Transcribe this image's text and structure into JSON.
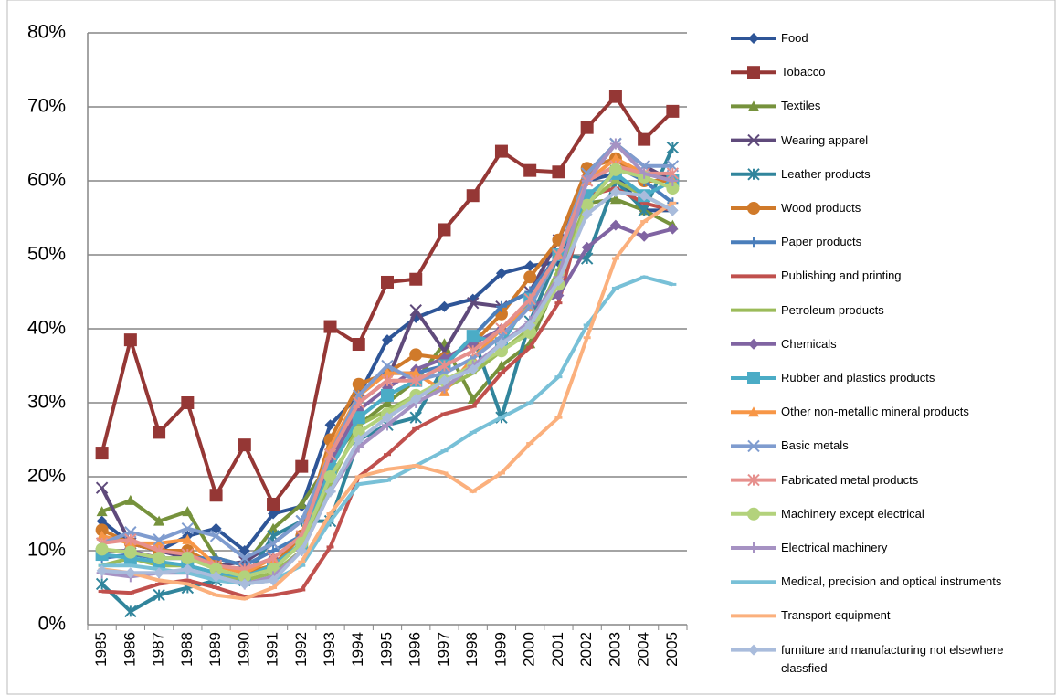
{
  "chart_data": {
    "type": "line",
    "categories": [
      "1985",
      "1986",
      "1987",
      "1988",
      "1989",
      "1990",
      "1991",
      "1992",
      "1993",
      "1994",
      "1995",
      "1996",
      "1997",
      "1998",
      "1999",
      "2000",
      "2001",
      "2002",
      "2003",
      "2004",
      "2005"
    ],
    "ylim": [
      0,
      80
    ],
    "yticks": [
      {
        "value": 0,
        "label": "0%"
      },
      {
        "value": 10,
        "label": "10%"
      },
      {
        "value": 20,
        "label": "20%"
      },
      {
        "value": 30,
        "label": "30%"
      },
      {
        "value": 40,
        "label": "40%"
      },
      {
        "value": 50,
        "label": "50%"
      },
      {
        "value": 60,
        "label": "60%"
      },
      {
        "value": 70,
        "label": "70%"
      },
      {
        "value": 80,
        "label": "80%"
      }
    ],
    "grid": true,
    "legend": "right",
    "series": [
      {
        "name": "Food",
        "color": "#2e5597",
        "marker": "diamond",
        "values": [
          14,
          11,
          10,
          12,
          13,
          10,
          15,
          16,
          27,
          31,
          38.5,
          41.5,
          43,
          44,
          47.5,
          48.5,
          49,
          60,
          61,
          56,
          56
        ]
      },
      {
        "name": "Tobacco",
        "color": "#953735",
        "marker": "square",
        "values": [
          23.2,
          38.5,
          26,
          30,
          17.5,
          24.3,
          16.3,
          21.4,
          40.3,
          37.9,
          46.3,
          46.7,
          53.4,
          58,
          64,
          61.4,
          61.2,
          67.2,
          71.4,
          65.6,
          69.4
        ]
      },
      {
        "name": "Textiles",
        "color": "#76923c",
        "marker": "triangle",
        "values": [
          15.3,
          16.8,
          14,
          15.3,
          9,
          8,
          13,
          16.3,
          22,
          27,
          30,
          33,
          38,
          30.5,
          35,
          38,
          47,
          57,
          57.5,
          56,
          54
        ]
      },
      {
        "name": "Wearing apparel",
        "color": "#5f4a7b",
        "marker": "x",
        "values": [
          18.5,
          11,
          10,
          9,
          8,
          8.5,
          11,
          14,
          22,
          30,
          33,
          42.5,
          37,
          43.5,
          43,
          45,
          52,
          61,
          65,
          62,
          60
        ]
      },
      {
        "name": "Leather products",
        "color": "#31859c",
        "marker": "star",
        "values": [
          5.5,
          1.8,
          4,
          5,
          6,
          6,
          12,
          14,
          14,
          25,
          27,
          28,
          35,
          39,
          28,
          41,
          50,
          49.5,
          60,
          56,
          64.5
        ]
      },
      {
        "name": "Wood products",
        "color": "#d07a2a",
        "marker": "circle",
        "values": [
          12.8,
          11,
          10,
          10,
          8,
          7,
          8,
          12,
          25,
          32.5,
          34,
          36.5,
          36,
          38,
          42,
          47,
          52,
          61.7,
          63,
          60,
          60
        ]
      },
      {
        "name": "Paper products",
        "color": "#4a7ebb",
        "marker": "plus",
        "values": [
          9,
          9.5,
          9,
          9,
          9,
          8,
          10,
          12,
          22,
          31,
          34,
          34,
          35,
          39,
          43,
          45,
          50,
          60,
          62,
          60,
          57
        ]
      },
      {
        "name": "Publishing and printing",
        "color": "#c0504d",
        "marker": "dash",
        "values": [
          4.5,
          4.3,
          5.5,
          6,
          5,
          3.8,
          4,
          4.7,
          10.5,
          20,
          23,
          26.5,
          28.5,
          29.5,
          34,
          37.5,
          43.5,
          58,
          59,
          57,
          56
        ]
      },
      {
        "name": "Petroleum products",
        "color": "#9bbb59",
        "marker": "dash",
        "values": [
          8,
          9,
          8,
          8,
          7,
          6,
          7,
          10,
          19,
          27,
          29,
          31,
          32,
          34,
          37,
          40,
          48,
          57,
          60,
          58,
          56
        ]
      },
      {
        "name": "Chemicals",
        "color": "#8064a2",
        "marker": "diamond",
        "values": [
          10,
          10,
          9,
          9,
          8,
          7.5,
          9,
          12,
          22,
          29,
          32,
          34.5,
          36,
          38,
          40,
          43,
          44.5,
          51,
          54,
          52.5,
          53.5
        ]
      },
      {
        "name": "Rubber and plastics products",
        "color": "#4bacc6",
        "marker": "square",
        "values": [
          9.5,
          9,
          8.5,
          8,
          7,
          6.5,
          8,
          11,
          21,
          28,
          31,
          33,
          35,
          39,
          38,
          44,
          50,
          58,
          61,
          58,
          60
        ]
      },
      {
        "name": "Other non-metallic mineral products",
        "color": "#f79646",
        "marker": "triangle",
        "values": [
          12,
          11,
          11,
          11.5,
          8,
          7,
          9,
          12,
          24,
          31,
          34,
          34,
          31.5,
          36,
          40,
          43,
          50,
          60,
          63,
          61,
          60
        ]
      },
      {
        "name": "Basic metals",
        "color": "#7f9ccf",
        "marker": "x",
        "values": [
          11,
          12.5,
          11.5,
          13,
          12,
          9,
          11,
          14,
          23,
          31,
          35,
          33,
          34,
          36,
          39,
          43,
          50,
          61,
          65,
          62,
          62
        ]
      },
      {
        "name": "Fabricated metal products",
        "color": "#e6908d",
        "marker": "star",
        "values": [
          11,
          11.5,
          10,
          9.5,
          8,
          7.5,
          9,
          12,
          23,
          30,
          33,
          33,
          35,
          37,
          40,
          44,
          50,
          60,
          62,
          61,
          61
        ]
      },
      {
        "name": "Machinery except electrical",
        "color": "#b3d27c",
        "marker": "circle",
        "values": [
          10.2,
          9.8,
          9,
          9,
          7.5,
          6.5,
          7.5,
          11,
          20,
          26,
          28.5,
          31,
          33,
          35,
          37,
          39.5,
          46,
          56.7,
          61.5,
          60.5,
          59
        ]
      },
      {
        "name": "Electrical machinery",
        "color": "#a692c3",
        "marker": "plus",
        "values": [
          7,
          6.5,
          7,
          7,
          6.5,
          5.5,
          6.5,
          10,
          18,
          24,
          27,
          30,
          32,
          35,
          38,
          41,
          47,
          60,
          65,
          61,
          60
        ]
      },
      {
        "name": "Medical, precision and optical instruments",
        "color": "#78c0d7",
        "marker": "dash",
        "values": [
          8,
          8,
          7.5,
          7,
          6,
          5.5,
          6,
          8,
          14,
          19,
          19.5,
          21.5,
          23.5,
          26,
          28,
          30,
          33.5,
          40.5,
          45.5,
          47,
          46
        ]
      },
      {
        "name": "Transport equipment",
        "color": "#fbb07d",
        "marker": "dash",
        "values": [
          7.5,
          7,
          6,
          5.5,
          4,
          3.5,
          5,
          8.5,
          15,
          20,
          21,
          21.5,
          20.5,
          18,
          20.5,
          24.5,
          28,
          38.8,
          49.5,
          54.5,
          57
        ]
      },
      {
        "name": "furniture and manufacturing not elsewhere classfied",
        "color": "#a9bcdc",
        "marker": "diamond",
        "values": [
          7.3,
          7,
          7,
          7.5,
          6.5,
          5.5,
          6,
          10,
          18,
          25,
          28,
          30.5,
          33,
          34.5,
          38,
          40.5,
          46.5,
          55.5,
          58.5,
          58,
          56
        ]
      }
    ]
  }
}
